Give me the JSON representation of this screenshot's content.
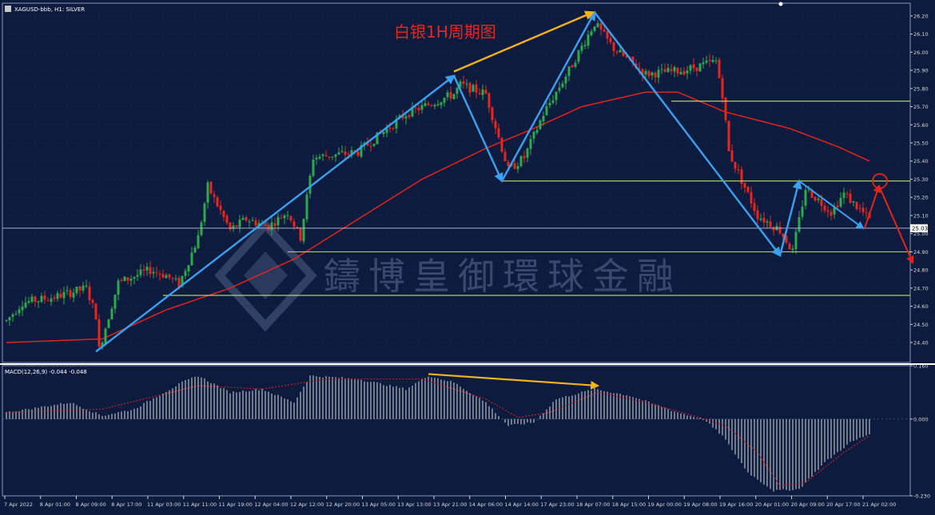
{
  "window": {
    "symbol_label": "XAGUSD-bbb, H1:  SILVER",
    "macd_label": "MACD(12,26,9) -0.044 -0.048"
  },
  "annotation": {
    "title": "白银1H周期图"
  },
  "watermark": {
    "text": "鑄博皇御環球金融"
  },
  "current_price_label": "25.03",
  "colors": {
    "background": "#0d1b3e",
    "grid": "#24345e",
    "bull": "#2fa84f",
    "bear": "#e8261d",
    "ma": "#e3241b",
    "support": "#c5e060",
    "zigzag": "#3aa0f0",
    "divergence": "#f2b21a",
    "forecast": "#e3241b",
    "macd_bar": "#d8d8d8",
    "macd_signal": "#e3241b",
    "axis_text": "#d8d8d8"
  },
  "chart_data": [
    {
      "type": "candlestick",
      "ylim": [
        24.29,
        26.27
      ],
      "yticks": [
        "26.20",
        "26.10",
        "26.00",
        "25.90",
        "25.80",
        "25.70",
        "25.60",
        "25.50",
        "25.40",
        "25.30",
        "25.20",
        "25.10",
        "25.00",
        "24.90",
        "24.80",
        "24.70",
        "24.60",
        "24.50",
        "24.40"
      ],
      "xticks": [
        "7 Apr 2022",
        "8 Apr 01:00",
        "8 Apr 09:00",
        "8 Apr 17:00",
        "11 Apr 03:00",
        "11 Apr 11:00",
        "11 Apr 19:00",
        "12 Apr 04:00",
        "12 Apr 12:00",
        "12 Apr 20:00",
        "13 Apr 05:00",
        "13 Apr 13:00",
        "13 Apr 21:00",
        "14 Apr 06:00",
        "14 Apr 14:00",
        "17 Apr 23:00",
        "18 Apr 07:00",
        "18 Apr 15:00",
        "19 Apr 00:00",
        "19 Apr 08:00",
        "19 Apr 16:00",
        "20 Apr 01:00",
        "20 Apr 09:00",
        "20 Apr 17:00",
        "21 Apr 02:00"
      ],
      "price_anchors": [
        [
          0,
          24.52
        ],
        [
          5,
          24.62
        ],
        [
          15,
          24.65
        ],
        [
          25,
          24.7
        ],
        [
          28,
          24.55
        ],
        [
          29,
          24.36
        ],
        [
          35,
          24.73
        ],
        [
          45,
          24.8
        ],
        [
          50,
          24.77
        ],
        [
          54,
          24.72
        ],
        [
          60,
          24.98
        ],
        [
          63,
          25.26
        ],
        [
          70,
          25.02
        ],
        [
          75,
          25.08
        ],
        [
          82,
          25.04
        ],
        [
          88,
          25.12
        ],
        [
          92,
          24.98
        ],
        [
          96,
          25.42
        ],
        [
          110,
          25.45
        ],
        [
          125,
          25.66
        ],
        [
          140,
          25.77
        ],
        [
          142,
          25.82
        ],
        [
          150,
          25.77
        ],
        [
          157,
          25.35
        ],
        [
          162,
          25.42
        ],
        [
          168,
          25.66
        ],
        [
          176,
          25.9
        ],
        [
          184,
          26.16
        ],
        [
          190,
          26.02
        ],
        [
          200,
          25.88
        ],
        [
          212,
          25.9
        ],
        [
          222,
          25.95
        ],
        [
          224,
          25.77
        ],
        [
          226,
          25.45
        ],
        [
          235,
          25.1
        ],
        [
          242,
          25.02
        ],
        [
          246,
          24.9
        ],
        [
          250,
          25.25
        ],
        [
          258,
          25.12
        ],
        [
          262,
          25.22
        ],
        [
          270,
          25.08
        ]
      ],
      "moving_average": {
        "anchors": [
          [
            0,
            24.4
          ],
          [
            30,
            24.42
          ],
          [
            50,
            24.58
          ],
          [
            70,
            24.7
          ],
          [
            90,
            24.86
          ],
          [
            110,
            25.08
          ],
          [
            130,
            25.3
          ],
          [
            150,
            25.47
          ],
          [
            165,
            25.58
          ],
          [
            180,
            25.7
          ],
          [
            200,
            25.78
          ],
          [
            210,
            25.78
          ],
          [
            225,
            25.67
          ],
          [
            245,
            25.58
          ],
          [
            260,
            25.48
          ],
          [
            270,
            25.4
          ]
        ]
      },
      "support_levels": [
        {
          "price": 25.73,
          "from_index": 208
        },
        {
          "price": 25.29,
          "from_index": 155
        },
        {
          "price": 25.03,
          "from_index": 0
        },
        {
          "price": 24.9,
          "from_index": 88
        },
        {
          "price": 24.66,
          "from_index": 49
        }
      ],
      "zigzag": [
        [
          28,
          24.35
        ],
        [
          140,
          25.87
        ],
        [
          155,
          25.29
        ],
        [
          184,
          26.22
        ],
        [
          242,
          24.88
        ],
        [
          248,
          25.29
        ],
        [
          268,
          25.03
        ]
      ],
      "price_divergence_arrow": [
        [
          140,
          25.88
        ],
        [
          184,
          26.22
        ]
      ],
      "forecast": [
        [
          268,
          25.03
        ],
        [
          273,
          25.29
        ],
        [
          283,
          24.84
        ]
      ],
      "forecast_circle": [
        273,
        25.29
      ]
    },
    {
      "type": "histogram",
      "ylim": [
        -0.23,
        0.16
      ],
      "yticks": [
        "0.160",
        "0.000",
        "-0.230"
      ],
      "anchors": [
        [
          0,
          0.02
        ],
        [
          10,
          0.035
        ],
        [
          20,
          0.05
        ],
        [
          30,
          0.01
        ],
        [
          40,
          0.03
        ],
        [
          55,
          0.11
        ],
        [
          60,
          0.13
        ],
        [
          70,
          0.08
        ],
        [
          80,
          0.09
        ],
        [
          90,
          0.05
        ],
        [
          95,
          0.13
        ],
        [
          110,
          0.12
        ],
        [
          125,
          0.09
        ],
        [
          132,
          0.13
        ],
        [
          140,
          0.11
        ],
        [
          150,
          0.05
        ],
        [
          157,
          -0.02
        ],
        [
          165,
          -0.01
        ],
        [
          172,
          0.06
        ],
        [
          184,
          0.09
        ],
        [
          195,
          0.07
        ],
        [
          210,
          0.02
        ],
        [
          218,
          0.0
        ],
        [
          224,
          -0.05
        ],
        [
          232,
          -0.16
        ],
        [
          240,
          -0.215
        ],
        [
          248,
          -0.21
        ],
        [
          256,
          -0.13
        ],
        [
          264,
          -0.07
        ],
        [
          270,
          -0.045
        ]
      ],
      "signal": [
        [
          0,
          0.02
        ],
        [
          30,
          0.03
        ],
        [
          60,
          0.1
        ],
        [
          80,
          0.09
        ],
        [
          100,
          0.12
        ],
        [
          130,
          0.12
        ],
        [
          150,
          0.06
        ],
        [
          160,
          0.005
        ],
        [
          170,
          0.02
        ],
        [
          185,
          0.08
        ],
        [
          200,
          0.05
        ],
        [
          215,
          0.01
        ],
        [
          225,
          -0.02
        ],
        [
          235,
          -0.1
        ],
        [
          242,
          -0.2
        ],
        [
          250,
          -0.19
        ],
        [
          262,
          -0.1
        ],
        [
          270,
          -0.05
        ]
      ],
      "divergence_arrow": [
        [
          132,
          0.135
        ],
        [
          185,
          0.1
        ]
      ]
    }
  ]
}
